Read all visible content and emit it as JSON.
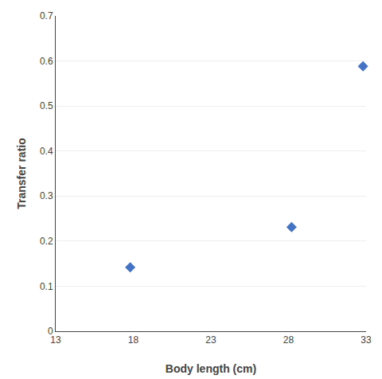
{
  "chart_data": {
    "type": "scatter",
    "x": [
      17.8,
      28.2,
      32.8
    ],
    "values": [
      0.142,
      0.231,
      0.588
    ],
    "color": "#4472C4",
    "marker": "diamond",
    "xlabel": "Body length (cm)",
    "ylabel": "Transfer ratio",
    "xlim": [
      13,
      33
    ],
    "ylim": [
      0,
      0.7
    ],
    "xticks": [
      13,
      18,
      23,
      28,
      33
    ],
    "yticks": [
      0,
      0.1,
      0.2,
      0.3,
      0.4,
      0.5,
      0.6,
      0.7
    ],
    "grid": "y"
  }
}
